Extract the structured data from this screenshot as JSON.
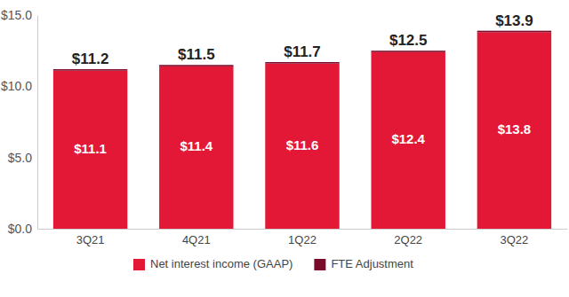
{
  "chart_data": {
    "type": "bar",
    "stacked": true,
    "data_labels": true,
    "legend": "bottom",
    "categories": [
      "3Q21",
      "4Q21",
      "1Q22",
      "2Q22",
      "3Q22"
    ],
    "series": [
      {
        "name": "Net interest income (GAAP)",
        "color": "#e31837",
        "values": [
          11.1,
          11.4,
          11.6,
          12.4,
          13.8
        ],
        "value_labels": [
          "$11.1",
          "$11.4",
          "$11.6",
          "$12.4",
          "$13.8"
        ]
      },
      {
        "name": "FTE Adjustment",
        "color": "#7a0a2a",
        "values": [
          0.1,
          0.1,
          0.1,
          0.1,
          0.1
        ]
      }
    ],
    "totals": [
      11.2,
      11.5,
      11.7,
      12.5,
      13.9
    ],
    "total_labels": [
      "$11.2",
      "$11.5",
      "$11.7",
      "$12.5",
      "$13.9"
    ],
    "ylim": [
      0,
      15
    ],
    "yticks": [
      {
        "value": 0,
        "label": "$0.0"
      },
      {
        "value": 5,
        "label": "$5.0"
      },
      {
        "value": 10,
        "label": "$10.0"
      },
      {
        "value": 15,
        "label": "$15.0"
      }
    ],
    "grid": false
  }
}
